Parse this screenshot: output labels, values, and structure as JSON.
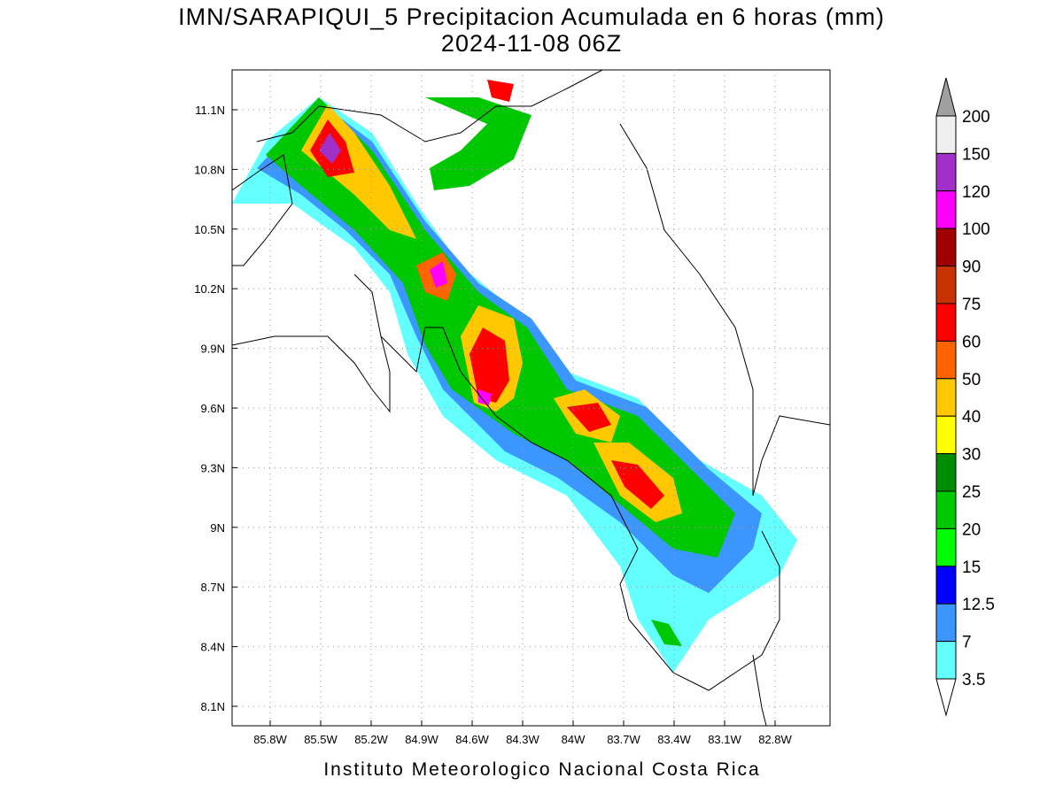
{
  "header": {
    "title": "IMN/SARAPIQUI_5 Precipitacion Acumulada en 6 horas (mm)",
    "subtitle": "2024-11-08 06Z"
  },
  "map": {
    "lat_labels": [
      "11.1N",
      "10.8N",
      "10.5N",
      "10.2N",
      "9.9N",
      "9.6N",
      "9.3N",
      "9N",
      "8.7N",
      "8.4N",
      "8.1N"
    ],
    "lon_labels": [
      "85.8W",
      "85.5W",
      "85.2W",
      "84.9W",
      "84.6W",
      "84.3W",
      "84W",
      "83.7W",
      "83.4W",
      "83.1W",
      "82.8W"
    ]
  },
  "legend": {
    "labels": [
      "200",
      "150",
      "120",
      "100",
      "90",
      "75",
      "60",
      "50",
      "40",
      "30",
      "25",
      "20",
      "15",
      "12.5",
      "7",
      "3.5"
    ]
  },
  "footer": "Instituto Meteorologico Nacional Costa Rica"
}
